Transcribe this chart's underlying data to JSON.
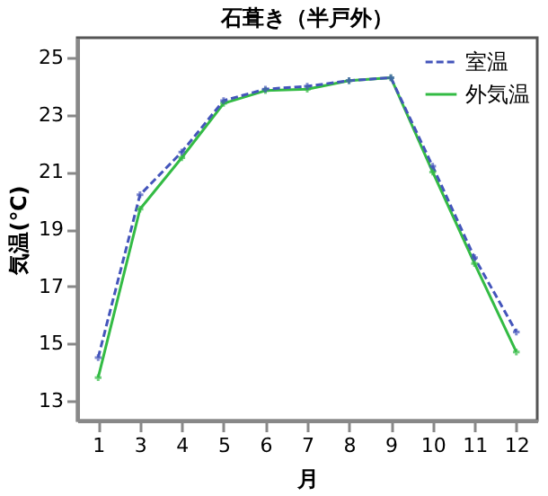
{
  "chart_data": {
    "type": "line",
    "title": "石葺き（半戸外）",
    "xlabel": "月",
    "ylabel": "気温(℃)",
    "categories": [
      "1",
      "3",
      "4",
      "5",
      "6",
      "7",
      "8",
      "9",
      "10",
      "11",
      "12"
    ],
    "series": [
      {
        "name": "室温",
        "color": "#4455bb",
        "line_style": "dashed",
        "values": [
          14.5,
          20.2,
          21.7,
          23.5,
          23.9,
          24.0,
          24.2,
          24.3,
          21.2,
          18.0,
          15.4
        ]
      },
      {
        "name": "外気温",
        "color": "#33bb44",
        "line_style": "solid",
        "values": [
          13.8,
          19.7,
          21.5,
          23.4,
          23.85,
          23.9,
          24.2,
          24.3,
          21.0,
          17.8,
          14.7
        ]
      }
    ],
    "ylim": [
      12.3,
      25.7
    ],
    "yticks": [
      13,
      15,
      17,
      19,
      21,
      23,
      25
    ],
    "grid": false,
    "legend": "top right",
    "marker": "cross"
  }
}
